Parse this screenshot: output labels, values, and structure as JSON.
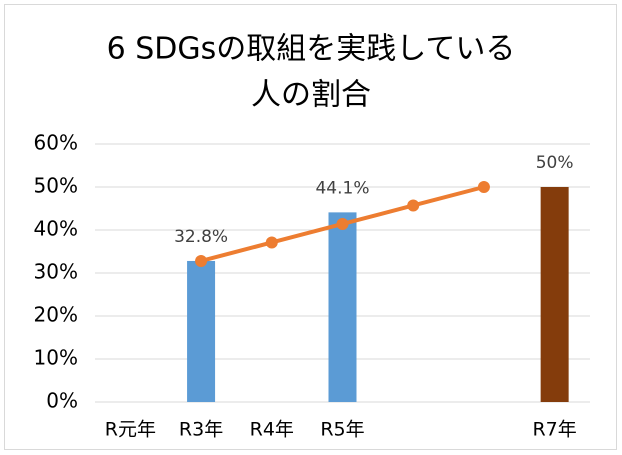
{
  "chart_data": {
    "type": "bar-line",
    "title": [
      "6 SDGsの取組を実践している",
      "人の割合"
    ],
    "categories": [
      "R元年",
      "R3年",
      "R4年",
      "R5年",
      null,
      null,
      "R7年"
    ],
    "series": [
      {
        "kind": "bar",
        "colors": [
          null,
          "#5b9bd5",
          null,
          "#5b9bd5",
          null,
          null,
          "#843c0c"
        ],
        "values": [
          null,
          32.8,
          null,
          44.1,
          null,
          null,
          50
        ],
        "value_labels": [
          null,
          "32.8%",
          null,
          "44.1%",
          null,
          null,
          "50%"
        ]
      },
      {
        "kind": "line",
        "color": "#ed7d31",
        "values": [
          null,
          32.8,
          37.1,
          41.4,
          45.7,
          50,
          null
        ]
      }
    ],
    "ylim": [
      0,
      60
    ],
    "yticks": [
      {
        "value": 0,
        "label": "0%"
      },
      {
        "value": 10,
        "label": "10%"
      },
      {
        "value": 20,
        "label": "20%"
      },
      {
        "value": 30,
        "label": "30%"
      },
      {
        "value": 40,
        "label": "40%"
      },
      {
        "value": 50,
        "label": "50%"
      },
      {
        "value": 60,
        "label": "60%"
      }
    ],
    "grid": true
  }
}
